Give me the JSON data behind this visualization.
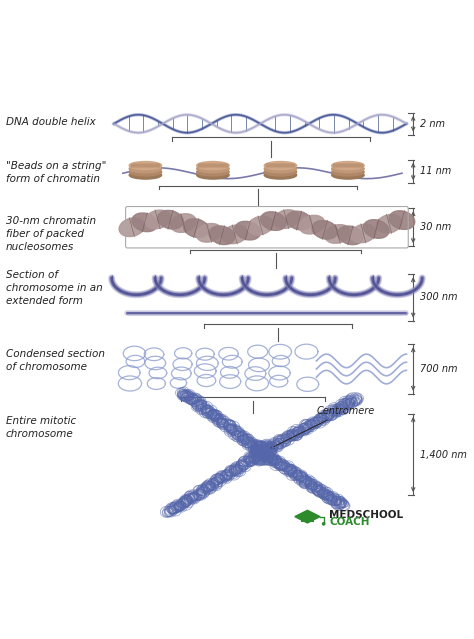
{
  "bg_color": "#ffffff",
  "text_color": "#222222",
  "bracket_color": "#555555",
  "dna_blue": "#4a5a9a",
  "dna_light": "#aaaacc",
  "dna_rung": "#7788aa",
  "bead_color1": "#c09878",
  "bead_color2": "#a07858",
  "string_color": "#7a7aaa",
  "fiber_color1": "#b09898",
  "fiber_color2": "#9a8080",
  "fiber_stripe": "#6a5555",
  "loop_fill": "#8888bb",
  "loop_edge": "#5a5a9a",
  "condensed_color": "#8899cc",
  "chrom_color": "#5566aa",
  "green_dark": "#1a6e1a",
  "green_logo": "#2d8a2d",
  "labels": [
    "DNA double helix",
    "\"Beads on a string\"\nform of chromatin",
    "30-nm chromatin\nfiber of packed\nnucleosomes",
    "Section of\nchromosome in an\nextended form",
    "Condensed section\nof chromosome",
    "Entire mitotic\nchromosome"
  ],
  "sizes": [
    "2 nm",
    "11 nm",
    "30 nm",
    "300 nm",
    "700 nm",
    "1,400 nm"
  ],
  "y_centers": [
    9.35,
    8.25,
    7.05,
    5.55,
    3.9,
    2.0
  ]
}
